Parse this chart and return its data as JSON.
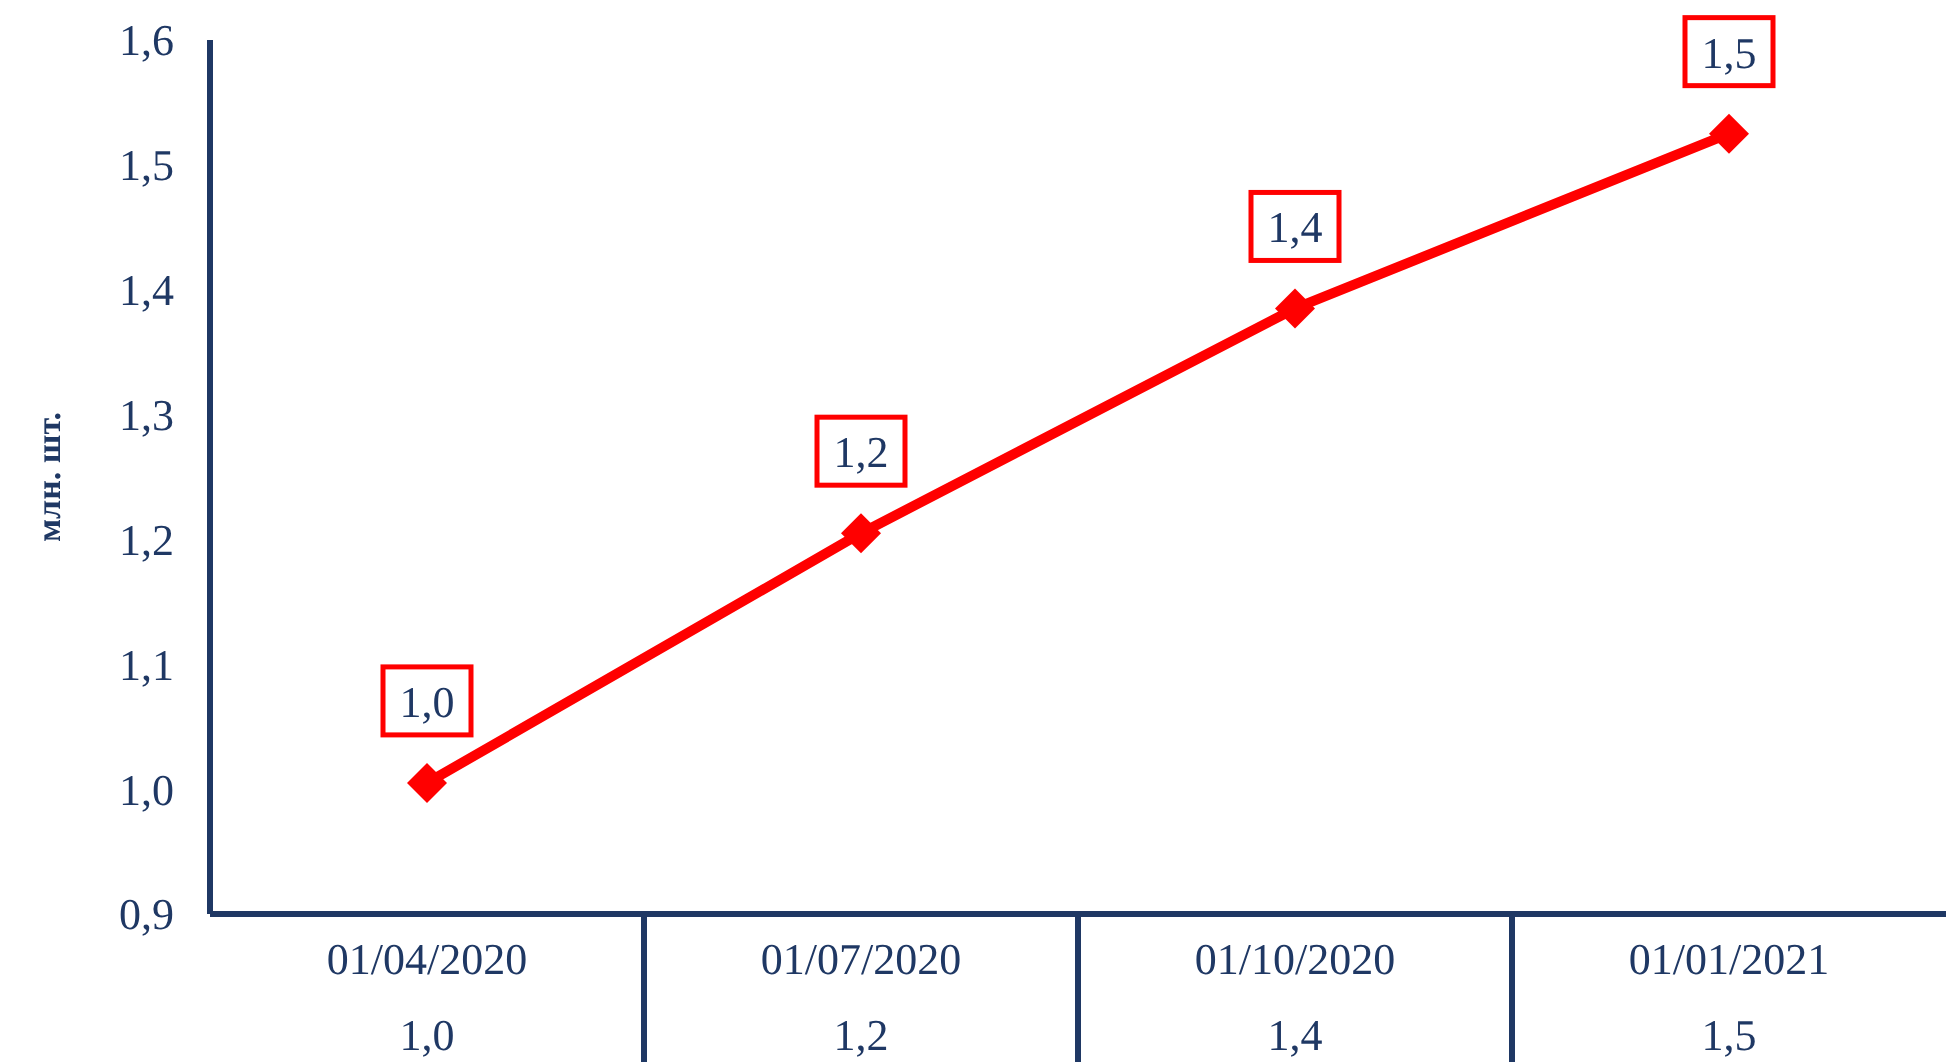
{
  "chart_data": {
    "type": "line",
    "ylabel": "млн. шт.",
    "categories": [
      "01/04/2020",
      "01/07/2020",
      "01/10/2020",
      "01/01/2021"
    ],
    "series": [
      {
        "color": "#ff0000",
        "values": [
          1.005,
          1.205,
          1.385,
          1.525
        ],
        "value_labels": [
          "1,0",
          "1,2",
          "1,4",
          "1,5"
        ]
      }
    ],
    "ylim": [
      0.9,
      1.6
    ],
    "yticks": [
      {
        "value": 0.9,
        "label": "0,9"
      },
      {
        "value": 1.0,
        "label": "1,0"
      },
      {
        "value": 1.1,
        "label": "1,1"
      },
      {
        "value": 1.2,
        "label": "1,2"
      },
      {
        "value": 1.3,
        "label": "1,3"
      },
      {
        "value": 1.4,
        "label": "1,4"
      },
      {
        "value": 1.5,
        "label": "1,5"
      },
      {
        "value": 1.6,
        "label": "1,6"
      }
    ],
    "grid": false,
    "marker": "diamond",
    "line_style": "solid"
  }
}
